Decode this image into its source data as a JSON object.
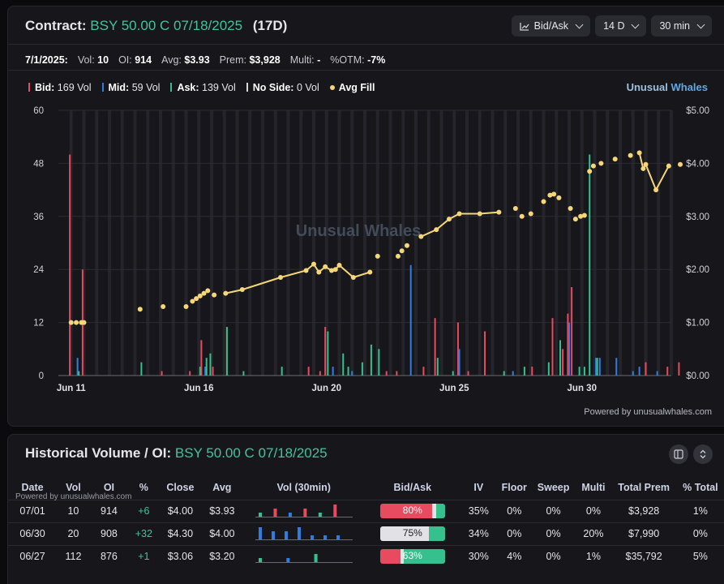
{
  "header": {
    "contract_label": "Contract:",
    "contract_name": "BSY 50.00 C 07/18/2025",
    "dte": "(17D)",
    "controls": [
      {
        "label": "Bid/Ask",
        "icon": "line-chart-icon"
      },
      {
        "label": "14 D"
      },
      {
        "label": "30 min"
      }
    ]
  },
  "stats": {
    "date": "7/1/2025:",
    "vol_label": "Vol:",
    "vol": "10",
    "oi_label": "OI:",
    "oi": "914",
    "avg_label": "Avg:",
    "avg": "$3.93",
    "prem_label": "Prem:",
    "prem": "$3,928",
    "multi_label": "Multi:",
    "multi": "-",
    "otm_label": "%OTM:",
    "otm": "-7%"
  },
  "legend": [
    {
      "name": "Bid:",
      "value": "169 Vol",
      "color": "#e84a5f"
    },
    {
      "name": "Mid:",
      "value": "59 Vol",
      "color": "#2f7de1"
    },
    {
      "name": "Ask:",
      "value": "139 Vol",
      "color": "#35c08d"
    },
    {
      "name": "No Side:",
      "value": "0 Vol",
      "color": "#d8d8d8"
    },
    {
      "name": "Avg Fill",
      "value": "",
      "color": "#f5d77a"
    }
  ],
  "brand": {
    "part1": "Unusual",
    "part2": "Whales"
  },
  "watermark": "Unusual Whales",
  "powered": "Powered by unusualwhales.com",
  "chart_data": {
    "type": "bar",
    "left_axis": {
      "ticks": [
        "0",
        "12",
        "24",
        "36",
        "48",
        "60"
      ],
      "ylim": [
        0,
        60
      ]
    },
    "right_axis": {
      "ticks": [
        "$0.00",
        "$1.00",
        "$2.00",
        "$3.00",
        "$4.00",
        "$5.00"
      ],
      "ylim": [
        0,
        5
      ]
    },
    "x_ticks": [
      {
        "label": "Jun 11",
        "t": 0
      },
      {
        "label": "Jun 16",
        "t": 10
      },
      {
        "label": "Jun 20",
        "t": 20
      },
      {
        "label": "Jun 25",
        "t": 30
      },
      {
        "label": "Jun 30",
        "t": 40
      }
    ],
    "t_range": [
      -1,
      47
    ],
    "bars": [
      {
        "t": 0.0,
        "bid": 50,
        "mid": 0,
        "ask": 0
      },
      {
        "t": 0.5,
        "bid": 0,
        "mid": 4,
        "ask": 1
      },
      {
        "t": 1.0,
        "bid": 24,
        "mid": 0,
        "ask": 0
      },
      {
        "t": 5.4,
        "bid": 0,
        "mid": 0,
        "ask": 3
      },
      {
        "t": 7.2,
        "bid": 1,
        "mid": 0,
        "ask": 0
      },
      {
        "t": 9.4,
        "bid": 1,
        "mid": 0,
        "ask": 0
      },
      {
        "t": 10.0,
        "bid": 0,
        "mid": 0,
        "ask": 2
      },
      {
        "t": 10.3,
        "bid": 8,
        "mid": 0,
        "ask": 0
      },
      {
        "t": 10.5,
        "bid": 0,
        "mid": 2,
        "ask": 4
      },
      {
        "t": 10.8,
        "bid": 0,
        "mid": 0,
        "ask": 5
      },
      {
        "t": 11.2,
        "bid": 2,
        "mid": 0,
        "ask": 0
      },
      {
        "t": 12.1,
        "bid": 0,
        "mid": 0,
        "ask": 11
      },
      {
        "t": 13.4,
        "bid": 0,
        "mid": 0,
        "ask": 1
      },
      {
        "t": 16.4,
        "bid": 0,
        "mid": 0,
        "ask": 2
      },
      {
        "t": 18.7,
        "bid": 2,
        "mid": 0,
        "ask": 0
      },
      {
        "t": 19.6,
        "bid": 1,
        "mid": 0,
        "ask": 0
      },
      {
        "t": 20.0,
        "bid": 11,
        "mid": 0,
        "ask": 10
      },
      {
        "t": 20.5,
        "bid": 0,
        "mid": 2,
        "ask": 0
      },
      {
        "t": 21.2,
        "bid": 0,
        "mid": 0,
        "ask": 5
      },
      {
        "t": 21.6,
        "bid": 0,
        "mid": 0,
        "ask": 2
      },
      {
        "t": 22.0,
        "bid": 0,
        "mid": 1,
        "ask": 0
      },
      {
        "t": 22.7,
        "bid": 0,
        "mid": 0,
        "ask": 3
      },
      {
        "t": 23.4,
        "bid": 0,
        "mid": 0,
        "ask": 7
      },
      {
        "t": 24.0,
        "bid": 0,
        "mid": 0,
        "ask": 6
      },
      {
        "t": 24.8,
        "bid": 1,
        "mid": 0,
        "ask": 0
      },
      {
        "t": 25.6,
        "bid": 1,
        "mid": 0,
        "ask": 0
      },
      {
        "t": 26.6,
        "bid": 0,
        "mid": 25,
        "ask": 0
      },
      {
        "t": 27.7,
        "bid": 2,
        "mid": 0,
        "ask": 0
      },
      {
        "t": 28.6,
        "bid": 13,
        "mid": 0,
        "ask": 4
      },
      {
        "t": 29.8,
        "bid": 0,
        "mid": 0,
        "ask": 1
      },
      {
        "t": 30.4,
        "bid": 12,
        "mid": 6,
        "ask": 0
      },
      {
        "t": 31.2,
        "bid": 1,
        "mid": 0,
        "ask": 0
      },
      {
        "t": 32.5,
        "bid": 10,
        "mid": 0,
        "ask": 0
      },
      {
        "t": 33.8,
        "bid": 0,
        "mid": 0,
        "ask": 1
      },
      {
        "t": 34.6,
        "bid": 0,
        "mid": 1,
        "ask": 0
      },
      {
        "t": 35.4,
        "bid": 0,
        "mid": 0,
        "ask": 2
      },
      {
        "t": 36.2,
        "bid": 2,
        "mid": 0,
        "ask": 0
      },
      {
        "t": 37.3,
        "bid": 0,
        "mid": 0,
        "ask": 3
      },
      {
        "t": 37.8,
        "bid": 13,
        "mid": 0,
        "ask": 0
      },
      {
        "t": 38.2,
        "bid": 0,
        "mid": 0,
        "ask": 8
      },
      {
        "t": 38.6,
        "bid": 6,
        "mid": 0,
        "ask": 0
      },
      {
        "t": 39.0,
        "bid": 14,
        "mid": 12,
        "ask": 0
      },
      {
        "t": 39.3,
        "bid": 20,
        "mid": 0,
        "ask": 0
      },
      {
        "t": 39.7,
        "bid": 0,
        "mid": 0,
        "ask": 2
      },
      {
        "t": 40.1,
        "bid": 0,
        "mid": 0,
        "ask": 2
      },
      {
        "t": 40.5,
        "bid": 0,
        "mid": 0,
        "ask": 50
      },
      {
        "t": 41.1,
        "bid": 0,
        "mid": 4,
        "ask": 4
      },
      {
        "t": 41.4,
        "bid": 0,
        "mid": 4,
        "ask": 0
      },
      {
        "t": 42.7,
        "bid": 0,
        "mid": 4,
        "ask": 0
      },
      {
        "t": 44.0,
        "bid": 0,
        "mid": 1,
        "ask": 0
      },
      {
        "t": 44.5,
        "bid": 0,
        "mid": 2,
        "ask": 0
      },
      {
        "t": 45.1,
        "bid": 3,
        "mid": 0,
        "ask": 0
      },
      {
        "t": 45.9,
        "bid": 0,
        "mid": 1,
        "ask": 0
      },
      {
        "t": 46.8,
        "bid": 2,
        "mid": 0,
        "ask": 0
      },
      {
        "t": 47.7,
        "bid": 3,
        "mid": 0,
        "ask": 0
      }
    ],
    "avg_fill": [
      [
        0.0,
        1.0
      ],
      [
        0.4,
        1.0
      ],
      [
        0.8,
        1.0
      ],
      [
        1.0,
        1.0
      ],
      [
        5.4,
        1.25
      ],
      [
        7.2,
        1.3
      ],
      [
        9.0,
        1.3
      ],
      [
        9.5,
        1.4
      ],
      [
        9.8,
        1.45
      ],
      [
        10.1,
        1.5
      ],
      [
        10.4,
        1.55
      ],
      [
        10.7,
        1.6
      ],
      [
        11.2,
        1.52
      ],
      [
        12.1,
        1.55
      ],
      [
        13.4,
        1.62
      ],
      [
        16.4,
        1.85
      ],
      [
        18.4,
        1.98
      ],
      [
        19.0,
        2.1
      ],
      [
        19.4,
        1.95
      ],
      [
        19.9,
        2.05
      ],
      [
        20.4,
        1.98
      ],
      [
        20.7,
        2.0
      ],
      [
        21.0,
        2.08
      ],
      [
        22.1,
        1.85
      ],
      [
        23.4,
        1.95
      ],
      [
        24.0,
        2.25
      ],
      [
        25.6,
        2.25
      ],
      [
        25.9,
        2.35
      ],
      [
        26.3,
        2.45
      ],
      [
        27.4,
        2.62
      ],
      [
        28.6,
        2.75
      ],
      [
        29.6,
        2.95
      ],
      [
        30.4,
        3.05
      ],
      [
        32.0,
        3.05
      ],
      [
        33.5,
        3.08
      ],
      [
        34.8,
        3.15
      ],
      [
        35.3,
        3.0
      ],
      [
        36.0,
        3.05
      ],
      [
        37.0,
        3.28
      ],
      [
        37.5,
        3.4
      ],
      [
        37.8,
        3.42
      ],
      [
        38.2,
        3.35
      ],
      [
        39.1,
        3.15
      ],
      [
        39.5,
        2.95
      ],
      [
        39.9,
        3.0
      ],
      [
        40.2,
        3.02
      ],
      [
        40.6,
        3.85
      ],
      [
        40.9,
        3.95
      ],
      [
        41.5,
        4.0
      ],
      [
        42.6,
        4.08
      ],
      [
        43.8,
        4.15
      ],
      [
        44.5,
        4.2
      ],
      [
        44.8,
        3.9
      ],
      [
        45.0,
        3.98
      ],
      [
        45.8,
        3.5
      ],
      [
        46.8,
        3.95
      ],
      [
        47.7,
        3.98
      ]
    ]
  },
  "history": {
    "title_prefix": "Historical Volume / OI:",
    "title_contract": "BSY 50.00 C 07/18/2025",
    "powered": "Powered by unusualwhales.com",
    "columns": [
      "Date",
      "Vol",
      "OI",
      "%",
      "Close",
      "Avg",
      "Vol (30min)",
      "Bid/Ask",
      "IV",
      "Floor",
      "Sweep",
      "Multi",
      "Total Prem",
      "% Total"
    ],
    "rows": [
      {
        "date": "07/01",
        "vol": "10",
        "oi": "914",
        "chg": "+6",
        "close": "$4.00",
        "avg": "$3.93",
        "spark": [
          [
            "ask",
            1
          ],
          [
            "bid",
            2
          ],
          [
            "mid",
            1
          ],
          [
            "bid",
            2
          ],
          [
            "ask",
            1
          ],
          [
            "bid",
            3
          ]
        ],
        "ba_label": "80%",
        "ba": [
          80,
          6,
          14
        ],
        "iv": "35%",
        "floor": "0%",
        "sweep": "0%",
        "multi": "0%",
        "prem": "$3,928",
        "pct": "1%"
      },
      {
        "date": "06/30",
        "vol": "20",
        "oi": "908",
        "chg": "+32",
        "close": "$4.30",
        "avg": "$4.00",
        "spark": [
          [
            "mid",
            3
          ],
          [
            "mid",
            2
          ],
          [
            "mid",
            2
          ],
          [
            "mid",
            3
          ],
          [
            "mid",
            1
          ],
          [
            "mid",
            1
          ],
          [
            "mid",
            1
          ]
        ],
        "ba_label": "75%",
        "ba": [
          0,
          75,
          25
        ],
        "iv": "34%",
        "floor": "0%",
        "sweep": "0%",
        "multi": "20%",
        "prem": "$7,990",
        "pct": "0%"
      },
      {
        "date": "06/27",
        "vol": "112",
        "oi": "876",
        "chg": "+1",
        "close": "$3.06",
        "avg": "$3.20",
        "spark": [
          [
            "ask",
            1
          ],
          [
            "mid",
            1
          ],
          [
            "ask",
            2
          ]
        ],
        "ba_label": "63%",
        "ba": [
          32,
          5,
          63
        ],
        "iv": "30%",
        "floor": "4%",
        "sweep": "0%",
        "multi": "1%",
        "prem": "$35,792",
        "pct": "5%"
      }
    ]
  },
  "colors": {
    "bid": "#e84a5f",
    "mid": "#2f7de1",
    "ask": "#35c08d",
    "fill": "#f5d77a",
    "accent": "#3fc59a"
  }
}
